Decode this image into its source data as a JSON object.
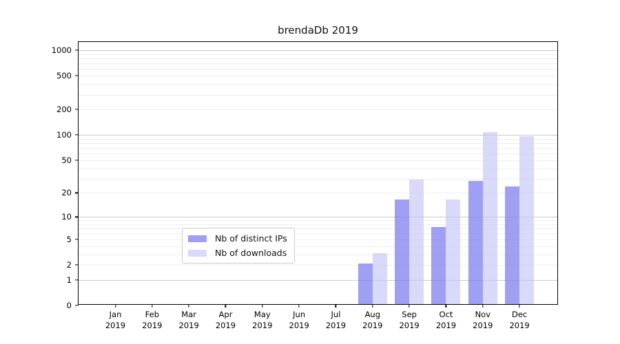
{
  "title": "brendaDb 2019",
  "legend": {
    "items": [
      {
        "label": "Nb of distinct IPs",
        "color": "rgba(122,122,240,0.72)"
      },
      {
        "label": "Nb of downloads",
        "color": "rgba(196,196,246,0.65)"
      }
    ]
  },
  "axes": {
    "y_tick_values": [
      0,
      1,
      2,
      5,
      10,
      20,
      50,
      100,
      200,
      500,
      1000
    ],
    "x_tick_year": "2019"
  },
  "chart_data": {
    "type": "bar",
    "title": "brendaDb 2019",
    "categories": [
      "Jan",
      "Feb",
      "Mar",
      "Apr",
      "May",
      "Jun",
      "Jul",
      "Aug",
      "Sep",
      "Oct",
      "Nov",
      "Dec"
    ],
    "category_year": "2019",
    "series": [
      {
        "name": "Nb of distinct IPs",
        "color": "rgba(122,122,240,0.72)",
        "values": [
          0,
          0,
          0,
          0,
          0,
          0,
          0,
          2,
          16,
          7,
          27,
          23
        ]
      },
      {
        "name": "Nb of downloads",
        "color": "rgba(196,196,246,0.65)",
        "values": [
          0,
          0,
          0,
          0,
          0,
          0,
          0,
          3,
          28,
          16,
          104,
          93
        ]
      }
    ],
    "yscale": "log1p",
    "ylim": [
      0,
      1250
    ],
    "y_ticks": [
      0,
      1,
      2,
      5,
      10,
      20,
      50,
      100,
      200,
      500,
      1000
    ],
    "grid": "horizontal major (1,10,100,1000) + minor (2-9 per decade)",
    "legend_position": "lower center-right inside axes",
    "xlabel": "",
    "ylabel": ""
  }
}
